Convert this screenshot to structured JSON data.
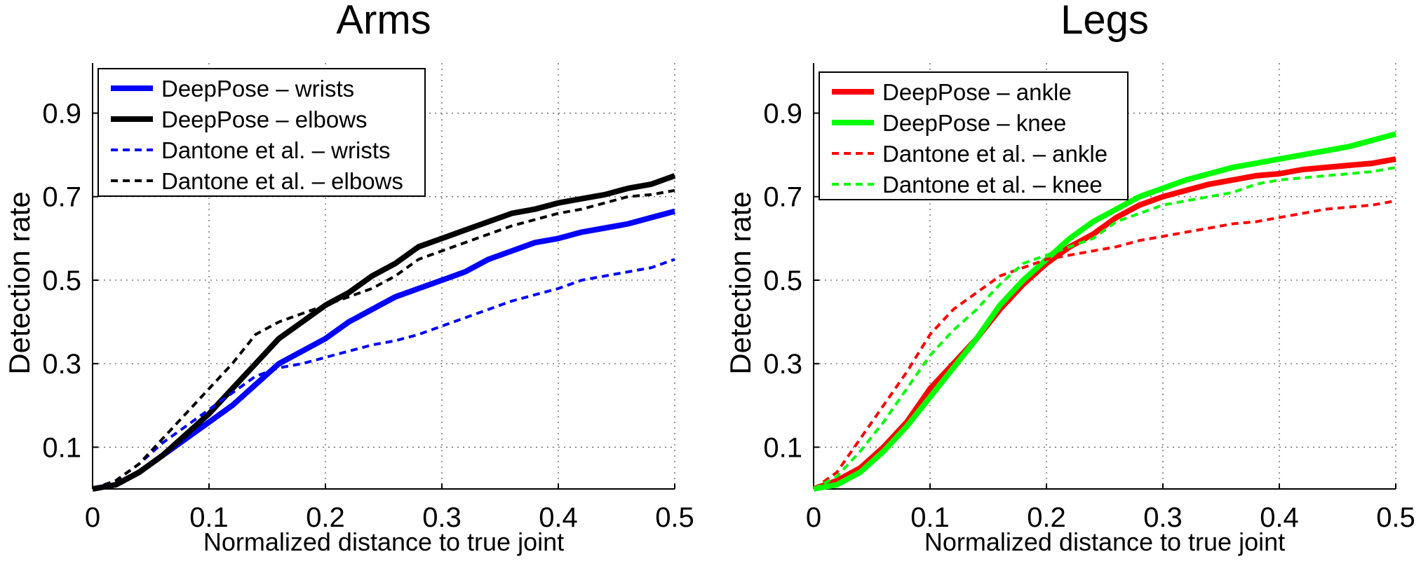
{
  "chart_data": [
    {
      "type": "line",
      "title": "Arms",
      "xlabel": "Normalized distance to true joint",
      "ylabel": "Detection rate",
      "xlim": [
        0,
        0.5
      ],
      "ylim": [
        0,
        1.02
      ],
      "xticks": [
        "0",
        "0.1",
        "0.2",
        "0.3",
        "0.4",
        "0.5"
      ],
      "yticks": [
        "0.1",
        "0.3",
        "0.5",
        "0.7",
        "0.9"
      ],
      "grid": true,
      "legend_position": "top-left",
      "series": [
        {
          "name": "DeepPose – wrists",
          "color": "#0000ff",
          "style": "solid",
          "x": [
            0,
            0.02,
            0.04,
            0.06,
            0.08,
            0.1,
            0.12,
            0.14,
            0.16,
            0.18,
            0.2,
            0.22,
            0.24,
            0.26,
            0.28,
            0.3,
            0.32,
            0.34,
            0.36,
            0.38,
            0.4,
            0.42,
            0.44,
            0.46,
            0.48,
            0.5
          ],
          "y": [
            0,
            0.01,
            0.04,
            0.08,
            0.12,
            0.16,
            0.2,
            0.25,
            0.3,
            0.33,
            0.36,
            0.4,
            0.43,
            0.46,
            0.48,
            0.5,
            0.52,
            0.55,
            0.57,
            0.59,
            0.6,
            0.615,
            0.625,
            0.635,
            0.65,
            0.665
          ]
        },
        {
          "name": "DeepPose – elbows",
          "color": "#000000",
          "style": "solid",
          "x": [
            0,
            0.02,
            0.04,
            0.06,
            0.08,
            0.1,
            0.12,
            0.14,
            0.16,
            0.18,
            0.2,
            0.22,
            0.24,
            0.26,
            0.28,
            0.3,
            0.32,
            0.34,
            0.36,
            0.38,
            0.4,
            0.42,
            0.44,
            0.46,
            0.48,
            0.5
          ],
          "y": [
            0,
            0.01,
            0.04,
            0.08,
            0.13,
            0.18,
            0.24,
            0.3,
            0.36,
            0.4,
            0.44,
            0.47,
            0.51,
            0.54,
            0.58,
            0.6,
            0.62,
            0.64,
            0.66,
            0.67,
            0.685,
            0.695,
            0.705,
            0.72,
            0.73,
            0.75
          ]
        },
        {
          "name": "Dantone et al. – wrists",
          "color": "#0000ff",
          "style": "dashed",
          "x": [
            0,
            0.02,
            0.04,
            0.06,
            0.08,
            0.1,
            0.12,
            0.14,
            0.16,
            0.18,
            0.2,
            0.22,
            0.24,
            0.26,
            0.28,
            0.3,
            0.32,
            0.34,
            0.36,
            0.38,
            0.4,
            0.42,
            0.44,
            0.46,
            0.48,
            0.5
          ],
          "y": [
            0,
            0.02,
            0.06,
            0.11,
            0.15,
            0.19,
            0.23,
            0.27,
            0.29,
            0.3,
            0.315,
            0.33,
            0.345,
            0.355,
            0.37,
            0.39,
            0.41,
            0.43,
            0.45,
            0.465,
            0.48,
            0.5,
            0.51,
            0.52,
            0.53,
            0.55
          ]
        },
        {
          "name": "Dantone et al. – elbows",
          "color": "#000000",
          "style": "dashed",
          "x": [
            0,
            0.02,
            0.04,
            0.06,
            0.08,
            0.1,
            0.12,
            0.14,
            0.16,
            0.18,
            0.2,
            0.22,
            0.24,
            0.26,
            0.28,
            0.3,
            0.32,
            0.34,
            0.36,
            0.38,
            0.4,
            0.42,
            0.44,
            0.46,
            0.48,
            0.5
          ],
          "y": [
            0,
            0.02,
            0.06,
            0.12,
            0.18,
            0.24,
            0.3,
            0.37,
            0.4,
            0.42,
            0.44,
            0.46,
            0.48,
            0.51,
            0.55,
            0.57,
            0.59,
            0.61,
            0.63,
            0.645,
            0.66,
            0.67,
            0.685,
            0.7,
            0.705,
            0.715
          ]
        }
      ]
    },
    {
      "type": "line",
      "title": "Legs",
      "xlabel": "Normalized distance to true joint",
      "ylabel": "Detection rate",
      "xlim": [
        0,
        0.5
      ],
      "ylim": [
        0,
        1.02
      ],
      "xticks": [
        "0",
        "0.1",
        "0.2",
        "0.3",
        "0.4",
        "0.5"
      ],
      "yticks": [
        "0.1",
        "0.3",
        "0.5",
        "0.7",
        "0.9"
      ],
      "grid": true,
      "legend_position": "top-left",
      "series": [
        {
          "name": "DeepPose – ankle",
          "color": "#ff0000",
          "style": "solid",
          "x": [
            0,
            0.02,
            0.04,
            0.06,
            0.08,
            0.1,
            0.12,
            0.14,
            0.16,
            0.18,
            0.2,
            0.22,
            0.24,
            0.26,
            0.28,
            0.3,
            0.32,
            0.34,
            0.36,
            0.38,
            0.4,
            0.42,
            0.44,
            0.46,
            0.48,
            0.5
          ],
          "y": [
            0,
            0.02,
            0.05,
            0.1,
            0.16,
            0.24,
            0.3,
            0.36,
            0.43,
            0.49,
            0.54,
            0.58,
            0.61,
            0.65,
            0.68,
            0.7,
            0.715,
            0.73,
            0.74,
            0.75,
            0.755,
            0.765,
            0.77,
            0.775,
            0.78,
            0.79
          ]
        },
        {
          "name": "DeepPose – knee",
          "color": "#00ff00",
          "style": "solid",
          "x": [
            0,
            0.02,
            0.04,
            0.06,
            0.08,
            0.1,
            0.12,
            0.14,
            0.16,
            0.18,
            0.2,
            0.22,
            0.24,
            0.26,
            0.28,
            0.3,
            0.32,
            0.34,
            0.36,
            0.38,
            0.4,
            0.42,
            0.44,
            0.46,
            0.48,
            0.5
          ],
          "y": [
            0,
            0.01,
            0.04,
            0.09,
            0.15,
            0.22,
            0.29,
            0.36,
            0.44,
            0.5,
            0.55,
            0.6,
            0.64,
            0.67,
            0.7,
            0.72,
            0.74,
            0.755,
            0.77,
            0.78,
            0.79,
            0.8,
            0.81,
            0.82,
            0.835,
            0.85
          ]
        },
        {
          "name": "Dantone et al. – ankle",
          "color": "#ff0000",
          "style": "dashed",
          "x": [
            0,
            0.02,
            0.04,
            0.06,
            0.08,
            0.1,
            0.12,
            0.14,
            0.16,
            0.18,
            0.2,
            0.22,
            0.24,
            0.26,
            0.28,
            0.3,
            0.32,
            0.34,
            0.36,
            0.38,
            0.4,
            0.42,
            0.44,
            0.46,
            0.48,
            0.5
          ],
          "y": [
            0,
            0.04,
            0.12,
            0.2,
            0.28,
            0.37,
            0.43,
            0.47,
            0.51,
            0.53,
            0.55,
            0.56,
            0.57,
            0.58,
            0.595,
            0.605,
            0.615,
            0.625,
            0.635,
            0.64,
            0.65,
            0.66,
            0.67,
            0.675,
            0.68,
            0.69
          ]
        },
        {
          "name": "Dantone et al. – knee",
          "color": "#00ff00",
          "style": "dashed",
          "x": [
            0,
            0.02,
            0.04,
            0.06,
            0.08,
            0.1,
            0.12,
            0.14,
            0.16,
            0.18,
            0.2,
            0.22,
            0.24,
            0.26,
            0.28,
            0.3,
            0.32,
            0.34,
            0.36,
            0.38,
            0.4,
            0.42,
            0.44,
            0.46,
            0.48,
            0.5
          ],
          "y": [
            0,
            0.03,
            0.09,
            0.16,
            0.24,
            0.32,
            0.38,
            0.43,
            0.49,
            0.54,
            0.56,
            0.58,
            0.6,
            0.64,
            0.66,
            0.68,
            0.69,
            0.7,
            0.71,
            0.73,
            0.74,
            0.745,
            0.75,
            0.755,
            0.76,
            0.77
          ]
        }
      ]
    }
  ]
}
